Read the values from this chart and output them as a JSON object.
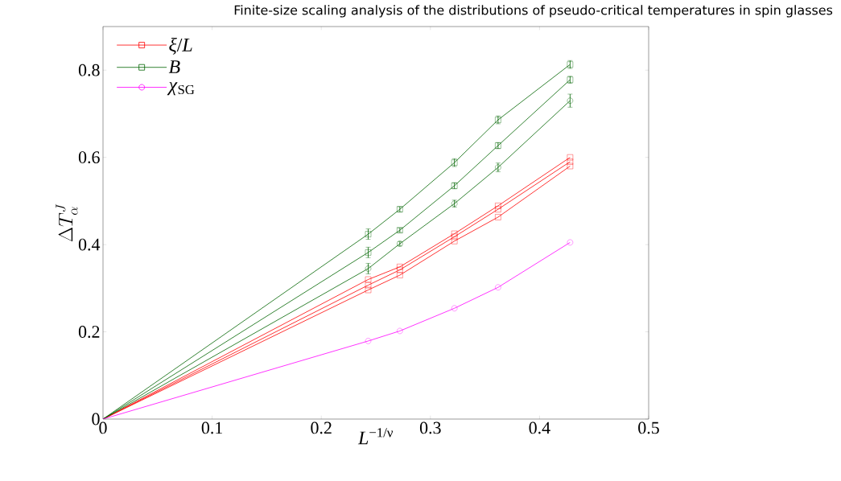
{
  "chart_data": {
    "type": "scatter",
    "title": "Finite-size scaling analysis of the distributions of pseudo-critical temperatures in spin glasses",
    "xlabel": "*L*$^{−1/ν}$",
    "ylabel": "\\Delta T^{J}_{\\alpha}",
    "x": [
      0.243,
      0.272,
      0.322,
      0.362,
      0.428
    ],
    "xlim": [
      0,
      0.5
    ],
    "ylim": [
      0,
      0.9
    ],
    "xticks": [
      0,
      0.1,
      0.2,
      0.3,
      0.4,
      0.5
    ],
    "yticks": [
      0,
      0.2,
      0.4,
      0.6,
      0.8
    ],
    "legend": "top left",
    "series": [
      {
        "name": "*ξ*/*L*",
        "color": "#ff0000",
        "marker": "square",
        "values": [
          0.32,
          0.349,
          0.425,
          0.489,
          0.6
        ]
      },
      {
        "color": "#ff0000",
        "marker": "square",
        "values": [
          0.307,
          0.342,
          0.418,
          0.481,
          0.59
        ]
      },
      {
        "color": "#ff0000",
        "marker": "square",
        "values": [
          0.296,
          0.33,
          0.408,
          0.463,
          0.58
        ]
      },
      {
        "name": "*B*",
        "color": "#006400",
        "marker": "square",
        "values": [
          0.424,
          0.481,
          0.588,
          0.686,
          0.813
        ],
        "errors": [
          0.012,
          0.006,
          0.009,
          0.009,
          0.009
        ]
      },
      {
        "color": "#006400",
        "marker": "square",
        "values": [
          0.382,
          0.433,
          0.535,
          0.627,
          0.778
        ],
        "errors": [
          0.012,
          0.005,
          0.007,
          0.007,
          0.008
        ]
      },
      {
        "color": "#006400",
        "marker": "circle",
        "values": [
          0.345,
          0.402,
          0.494,
          0.577,
          0.73
        ],
        "errors": [
          0.012,
          0.005,
          0.008,
          0.01,
          0.015
        ]
      },
      {
        "name": "*χ*$_{SG}$",
        "color": "#ff00ff",
        "marker": "circle",
        "values": [
          0.179,
          0.202,
          0.254,
          0.302,
          0.405
        ]
      },
      {
        "type": "line",
        "color": "#ff0000",
        "x": [
          0,
          0.243,
          0.272,
          0.322,
          0.362,
          0.428
        ],
        "values": [
          0,
          0.32,
          0.349,
          0.425,
          0.489,
          0.6
        ]
      },
      {
        "type": "line",
        "color": "#ff0000",
        "x": [
          0,
          0.243,
          0.272,
          0.322,
          0.362,
          0.428
        ],
        "values": [
          0,
          0.307,
          0.342,
          0.418,
          0.481,
          0.59
        ]
      },
      {
        "type": "line",
        "color": "#ff0000",
        "x": [
          0,
          0.243,
          0.272,
          0.322,
          0.362,
          0.428
        ],
        "values": [
          0,
          0.296,
          0.33,
          0.408,
          0.463,
          0.58
        ]
      },
      {
        "type": "line",
        "color": "#006400",
        "x": [
          0,
          0.243,
          0.272,
          0.322,
          0.362,
          0.428
        ],
        "values": [
          0,
          0.424,
          0.481,
          0.588,
          0.686,
          0.813
        ]
      },
      {
        "type": "line",
        "color": "#006400",
        "x": [
          0,
          0.243,
          0.272,
          0.322,
          0.362,
          0.428
        ],
        "values": [
          0,
          0.382,
          0.433,
          0.535,
          0.627,
          0.778
        ]
      },
      {
        "type": "line",
        "color": "#006400",
        "x": [
          0,
          0.243,
          0.272,
          0.322,
          0.362,
          0.428
        ],
        "values": [
          0,
          0.345,
          0.402,
          0.494,
          0.577,
          0.73
        ]
      },
      {
        "type": "line",
        "color": "#ff00ff",
        "x": [
          0,
          0.243,
          0.272,
          0.322,
          0.362,
          0.428
        ],
        "values": [
          0,
          0.179,
          0.202,
          0.254,
          0.302,
          0.405
        ]
      }
    ]
  }
}
